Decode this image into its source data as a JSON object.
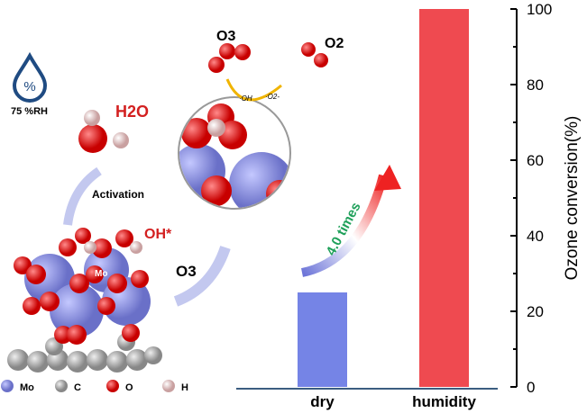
{
  "chart_data": {
    "type": "bar",
    "categories": [
      "dry",
      "humidity"
    ],
    "values": [
      25,
      100
    ],
    "colors": [
      "#7584e6",
      "#ef4a50"
    ],
    "ylabel": "Ozone conversion(%)",
    "ylim": [
      0,
      100
    ],
    "yticks": [
      "0",
      "20",
      "40",
      "60",
      "80",
      "100"
    ],
    "grid": false,
    "annotation": "4.0 times"
  },
  "illustration": {
    "humidity_label": "75 %RH",
    "humidity_icon_symbol": "%",
    "water_label": "H2O",
    "activation_label": "Activation",
    "oh_label": "OH*",
    "o3_arrow_label": "O3",
    "o3_top_label": "O3",
    "o2_label": "O2",
    "radical_oh": "·OH",
    "radical_o2": "·O2-",
    "mo_label": "Mo",
    "atom_labels": {
      "h": "H",
      "o": "O"
    },
    "legend": [
      {
        "label": "Mo",
        "color": "#7a80d6"
      },
      {
        "label": "C",
        "color": "#b5b5b5"
      },
      {
        "label": "O",
        "color": "#e01818"
      },
      {
        "label": "H",
        "color": "#e8c4c4"
      }
    ]
  }
}
